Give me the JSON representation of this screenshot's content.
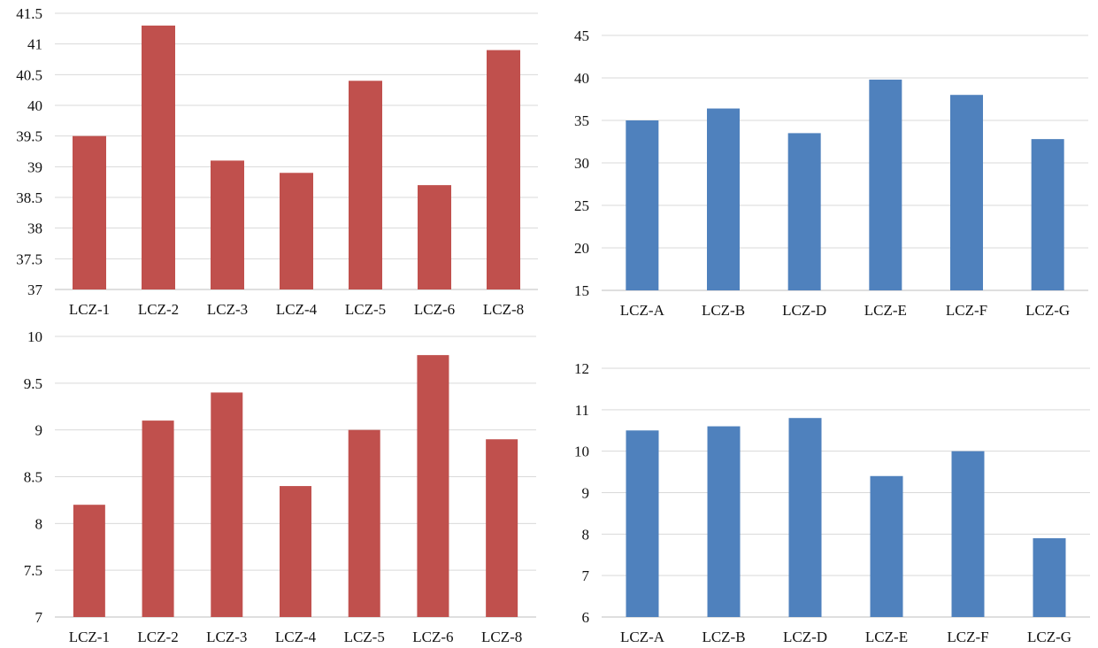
{
  "chart_data": [
    {
      "type": "bar",
      "color": "#c0504d",
      "categories": [
        "LCZ-1",
        "LCZ-2",
        "LCZ-3",
        "LCZ-4",
        "LCZ-5",
        "LCZ-6",
        "LCZ-8"
      ],
      "values": [
        39.5,
        41.3,
        39.1,
        38.9,
        40.4,
        38.7,
        40.9
      ],
      "ylim": [
        37,
        41.5
      ],
      "yticks": [
        "37",
        "37.5",
        "38",
        "38.5",
        "39",
        "39.5",
        "40",
        "40.5",
        "41",
        "41.5"
      ],
      "grid": true,
      "title": "",
      "xlabel": "",
      "ylabel": ""
    },
    {
      "type": "bar",
      "color": "#4f81bd",
      "categories": [
        "LCZ-A",
        "LCZ-B",
        "LCZ-D",
        "LCZ-E",
        "LCZ-F",
        "LCZ-G"
      ],
      "values": [
        35.0,
        36.4,
        33.5,
        39.8,
        38.0,
        32.8
      ],
      "ylim": [
        15,
        45
      ],
      "yticks": [
        "15",
        "20",
        "25",
        "30",
        "35",
        "40",
        "45"
      ],
      "grid": true,
      "title": "",
      "xlabel": "",
      "ylabel": ""
    },
    {
      "type": "bar",
      "color": "#c0504d",
      "categories": [
        "LCZ-1",
        "LCZ-2",
        "LCZ-3",
        "LCZ-4",
        "LCZ-5",
        "LCZ-6",
        "LCZ-8"
      ],
      "values": [
        8.2,
        9.1,
        9.4,
        8.4,
        9.0,
        9.8,
        8.9
      ],
      "ylim": [
        7,
        10
      ],
      "yticks": [
        "7",
        "7.5",
        "8",
        "8.5",
        "9",
        "9.5",
        "10"
      ],
      "grid": true,
      "title": "",
      "xlabel": "",
      "ylabel": ""
    },
    {
      "type": "bar",
      "color": "#4f81bd",
      "categories": [
        "LCZ-A",
        "LCZ-B",
        "LCZ-D",
        "LCZ-E",
        "LCZ-F",
        "LCZ-G"
      ],
      "values": [
        10.5,
        10.6,
        10.8,
        9.4,
        10.0,
        7.9
      ],
      "ylim": [
        6,
        12
      ],
      "yticks": [
        "6",
        "7",
        "8",
        "9",
        "10",
        "11",
        "12"
      ],
      "grid": true,
      "title": "",
      "xlabel": "",
      "ylabel": ""
    }
  ]
}
